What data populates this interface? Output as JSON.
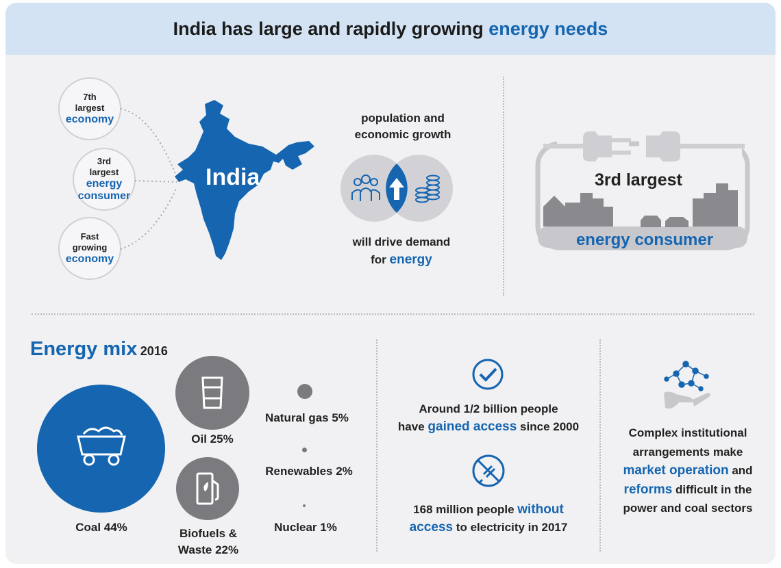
{
  "header": {
    "title_part1": "India has large and rapidly growing ",
    "title_part2": "energy needs"
  },
  "india": {
    "map_label": "India",
    "facts": [
      {
        "line1": "7th",
        "line2": "largest",
        "highlight": "economy"
      },
      {
        "line1": "3rd",
        "line2": "largest",
        "highlight1": "energy",
        "highlight2": "consumer"
      },
      {
        "line1": "Fast",
        "line2": "growing",
        "highlight": "economy"
      }
    ]
  },
  "growth": {
    "top_line1": "population and",
    "top_line2": "economic growth",
    "bottom_line1": "will drive demand",
    "bottom_prefix": "for ",
    "bottom_highlight": "energy"
  },
  "consumer": {
    "rank": "3rd largest",
    "label": "energy consumer"
  },
  "energy_mix": {
    "title": "Energy mix",
    "year": "2016",
    "items": [
      {
        "name": "Coal",
        "percent": 44,
        "label": "Coal 44%"
      },
      {
        "name": "Oil",
        "percent": 25,
        "label": "Oil 25%"
      },
      {
        "name": "Biofuels & Waste",
        "percent": 22,
        "label_line1": "Biofuels &",
        "label_line2": "Waste 22%"
      },
      {
        "name": "Natural gas",
        "percent": 5,
        "label": "Natural gas 5%"
      },
      {
        "name": "Renewables",
        "percent": 2,
        "label": "Renewables 2%"
      },
      {
        "name": "Nuclear",
        "percent": 1,
        "label": "Nuclear 1%"
      }
    ]
  },
  "access": {
    "gained_line1": "Around 1/2 billion people",
    "gained_prefix": "have ",
    "gained_highlight": "gained access",
    "gained_suffix": " since 2000",
    "without_prefix": "168 million people ",
    "without_highlight1": "without",
    "without_highlight2": "access",
    "without_suffix": " to electricity in 2017"
  },
  "institutional": {
    "line1": "Complex institutional",
    "line2": "arrangements make",
    "highlight1": "market operation",
    "and": " and",
    "highlight2": "reforms",
    "line4_suffix": " difficult in the",
    "line5": "power and coal sectors"
  },
  "colors": {
    "accent": "#1565b0",
    "header_bg": "#d3e3f3",
    "panel_bg": "#f1f1f3",
    "gray": "#7b7b7f"
  }
}
